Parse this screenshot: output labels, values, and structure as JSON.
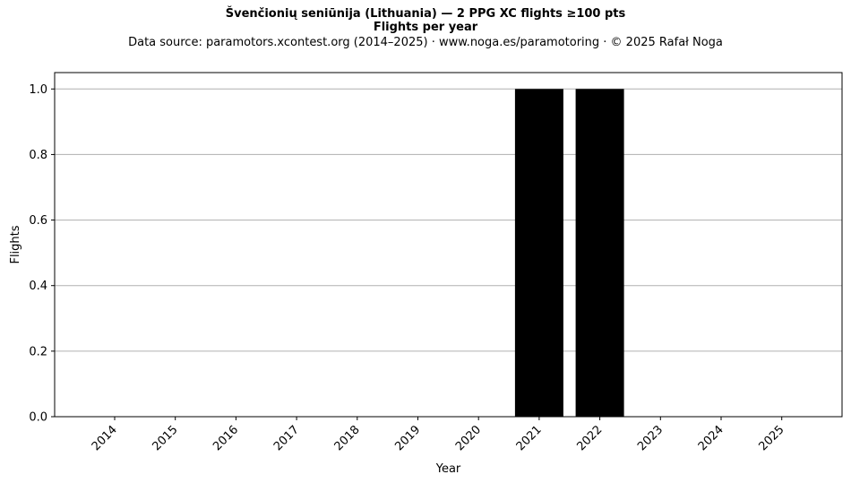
{
  "chart_data": {
    "type": "bar",
    "title": "Švenčionių seniūnija (Lithuania)  —  2 PPG XC flights ≥100 pts",
    "subtitle": "Flights per year",
    "note": "Data source: paramotors.xcontest.org (2014–2025)  ·  www.noga.es/paramotoring  ·  © 2025 Rafał Noga",
    "xlabel": "Year",
    "ylabel": "Flights",
    "categories": [
      "2014",
      "2015",
      "2016",
      "2017",
      "2018",
      "2019",
      "2020",
      "2021",
      "2022",
      "2023",
      "2024",
      "2025"
    ],
    "values": [
      0,
      0,
      0,
      0,
      0,
      0,
      0,
      1,
      1,
      0,
      0,
      0
    ],
    "ylim": [
      0,
      1.05
    ],
    "yticks": [
      "0.0",
      "0.2",
      "0.4",
      "0.6",
      "0.8",
      "1.0"
    ],
    "grid": "y",
    "bar_color": "#000000",
    "grid_color": "#b0b0b0"
  }
}
